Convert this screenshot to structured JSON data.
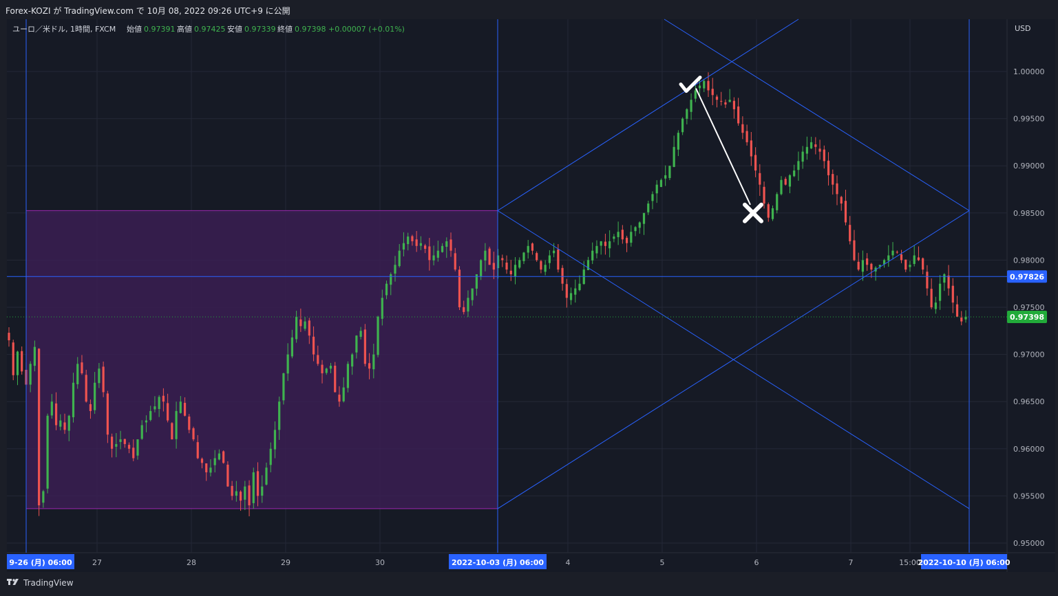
{
  "header": {
    "publish_text": "Forex-KOZI が TradingView.com で 10月 08, 2022 09:26 UTC+9 に公開"
  },
  "legend": {
    "symbol": "ユーロ／米ドル, 1時間, FXCM",
    "open_label": "始値",
    "open_value": "0.97391",
    "high_label": "高値",
    "high_value": "0.97425",
    "low_label": "安値",
    "low_value": "0.97339",
    "close_label": "終値",
    "close_value": "0.97398",
    "change": "+0.00007 (+0.01%)"
  },
  "price_axis": {
    "currency": "USD",
    "ticks": [
      "1.00000",
      "0.99500",
      "0.99000",
      "0.98500",
      "0.98000",
      "0.97500",
      "0.97000",
      "0.96500",
      "0.96000",
      "0.95500",
      "0.95000"
    ],
    "horizontal_line_label": "0.97826",
    "last_price_label": "0.97398"
  },
  "time_axis": {
    "ticks": [
      "27",
      "28",
      "29",
      "30",
      "4",
      "5",
      "6",
      "7",
      "15:00"
    ],
    "badge_left": "9-26 (月)   06:00",
    "badge_mid": "2022-10-03 (月)   06:00",
    "badge_right": "2022-10-10 (月)   06:00"
  },
  "footer": {
    "brand": "TradingView"
  },
  "colors": {
    "background": "#161a25",
    "grid": "#242836",
    "up": "#26a69a",
    "up_candle": "#3fb34f",
    "down": "#ef5350",
    "drawing_blue": "#2962ff",
    "range_fill": "#3a1f52",
    "range_border": "#9c27b0",
    "price_green": "#22ab3a"
  },
  "chart_data": {
    "type": "candlestick",
    "symbol": "ユーロ／米ドル, 1時間, FXCM",
    "ylim": [
      0.948,
      1.0025
    ],
    "x_ticks": [
      "27",
      "28",
      "29",
      "30",
      "4",
      "5",
      "6",
      "7",
      "15:00"
    ],
    "horizontal_line": 0.97826,
    "last_price": 0.97398,
    "range_box": {
      "from": "9-26 (月) 06:00",
      "to": "2022-10-03 (月) 06:00",
      "high": 0.98525,
      "low": 0.95365
    },
    "close_path": [
      0.9715,
      0.9678,
      0.9703,
      0.9682,
      0.9668,
      0.969,
      0.9708,
      0.954,
      0.9555,
      0.9635,
      0.965,
      0.9625,
      0.963,
      0.962,
      0.9635,
      0.967,
      0.969,
      0.968,
      0.965,
      0.964,
      0.967,
      0.9685,
      0.966,
      0.9615,
      0.96,
      0.9605,
      0.961,
      0.9605,
      0.96,
      0.959,
      0.961,
      0.9625,
      0.963,
      0.964,
      0.9645,
      0.9655,
      0.965,
      0.963,
      0.961,
      0.964,
      0.965,
      0.9635,
      0.962,
      0.961,
      0.959,
      0.9585,
      0.9575,
      0.958,
      0.959,
      0.9595,
      0.9585,
      0.956,
      0.955,
      0.9555,
      0.9545,
      0.956,
      0.954,
      0.9575,
      0.955,
      0.956,
      0.958,
      0.96,
      0.962,
      0.965,
      0.968,
      0.97,
      0.9718,
      0.974,
      0.973,
      0.9735,
      0.972,
      0.97,
      0.969,
      0.968,
      0.9685,
      0.9688,
      0.966,
      0.965,
      0.9665,
      0.969,
      0.97,
      0.972,
      0.9725,
      0.969,
      0.9685,
      0.97,
      0.974,
      0.976,
      0.9775,
      0.9785,
      0.9795,
      0.981,
      0.9818,
      0.9825,
      0.982,
      0.9815,
      0.9818,
      0.9812,
      0.98,
      0.9805,
      0.981,
      0.9815,
      0.982,
      0.981,
      0.979,
      0.975,
      0.9745,
      0.976,
      0.977,
      0.9785,
      0.98,
      0.981,
      0.9795,
      0.979,
      0.9805,
      0.98,
      0.979,
      0.9785,
      0.9795,
      0.98,
      0.9808,
      0.9815,
      0.981,
      0.98,
      0.979,
      0.9795,
      0.9805,
      0.981,
      0.979,
      0.9775,
      0.976,
      0.9765,
      0.977,
      0.9775,
      0.979,
      0.98,
      0.981,
      0.9815,
      0.982,
      0.9815,
      0.982,
      0.9825,
      0.983,
      0.9822,
      0.9818,
      0.983,
      0.9835,
      0.984,
      0.985,
      0.986,
      0.987,
      0.988,
      0.9885,
      0.989,
      0.99,
      0.992,
      0.9935,
      0.995,
      0.996,
      0.997,
      0.998,
      0.9985,
      0.999,
      0.998,
      0.9975,
      0.997,
      0.9968,
      0.9965,
      0.997,
      0.996,
      0.9945,
      0.9935,
      0.9925,
      0.991,
      0.9895,
      0.988,
      0.986,
      0.9845,
      0.9855,
      0.987,
      0.9885,
      0.988,
      0.989,
      0.9895,
      0.9905,
      0.9915,
      0.992,
      0.9925,
      0.992,
      0.9915,
      0.9905,
      0.989,
      0.988,
      0.987,
      0.986,
      0.984,
      0.982,
      0.98,
      0.979,
      0.98,
      0.9795,
      0.979,
      0.9792,
      0.9795,
      0.98,
      0.9805,
      0.981,
      0.9808,
      0.98,
      0.979,
      0.9795,
      0.9805,
      0.98,
      0.979,
      0.977,
      0.975,
      0.9755,
      0.9775,
      0.9785,
      0.977,
      0.9755,
      0.974,
      0.9735,
      0.974
    ],
    "drawings": [
      {
        "type": "rising_channel_line",
        "from": "2022-10-03 (月) 06:00",
        "from_price": 0.98525,
        "to_price": 1.0035
      },
      {
        "type": "rising_channel_line",
        "from": "2022-10-03 (月) 06:00",
        "from_price": 0.95365,
        "to": "2022-10-10 (月) 06:00",
        "to_price": 0.98525
      },
      {
        "type": "falling_channel_line",
        "from": "2022-10-03 (月) 06:00",
        "from_price": 0.98525,
        "to": "2022-10-10 (月) 06:00",
        "to_price": 0.95365
      },
      {
        "type": "falling_channel_line",
        "to": "2022-10-10 (月) 06:00",
        "to_price": 0.98525
      },
      {
        "type": "checkmark_marker",
        "price": 0.9985,
        "at": "5"
      },
      {
        "type": "cross_marker",
        "price": 0.985,
        "at": "6"
      }
    ]
  }
}
